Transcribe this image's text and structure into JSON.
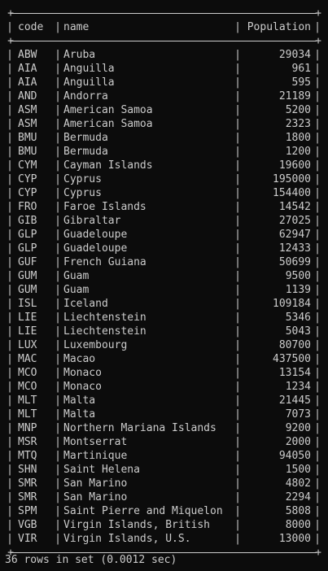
{
  "table": {
    "headers": {
      "code": "code",
      "name": "name",
      "population": "Population"
    },
    "rows": [
      {
        "code": "ABW",
        "name": "Aruba",
        "population": "29034"
      },
      {
        "code": "AIA",
        "name": "Anguilla",
        "population": "961"
      },
      {
        "code": "AIA",
        "name": "Anguilla",
        "population": "595"
      },
      {
        "code": "AND",
        "name": "Andorra",
        "population": "21189"
      },
      {
        "code": "ASM",
        "name": "American Samoa",
        "population": "5200"
      },
      {
        "code": "ASM",
        "name": "American Samoa",
        "population": "2323"
      },
      {
        "code": "BMU",
        "name": "Bermuda",
        "population": "1800"
      },
      {
        "code": "BMU",
        "name": "Bermuda",
        "population": "1200"
      },
      {
        "code": "CYM",
        "name": "Cayman Islands",
        "population": "19600"
      },
      {
        "code": "CYP",
        "name": "Cyprus",
        "population": "195000"
      },
      {
        "code": "CYP",
        "name": "Cyprus",
        "population": "154400"
      },
      {
        "code": "FRO",
        "name": "Faroe Islands",
        "population": "14542"
      },
      {
        "code": "GIB",
        "name": "Gibraltar",
        "population": "27025"
      },
      {
        "code": "GLP",
        "name": "Guadeloupe",
        "population": "62947"
      },
      {
        "code": "GLP",
        "name": "Guadeloupe",
        "population": "12433"
      },
      {
        "code": "GUF",
        "name": "French Guiana",
        "population": "50699"
      },
      {
        "code": "GUM",
        "name": "Guam",
        "population": "9500"
      },
      {
        "code": "GUM",
        "name": "Guam",
        "population": "1139"
      },
      {
        "code": "ISL",
        "name": "Iceland",
        "population": "109184"
      },
      {
        "code": "LIE",
        "name": "Liechtenstein",
        "population": "5346"
      },
      {
        "code": "LIE",
        "name": "Liechtenstein",
        "population": "5043"
      },
      {
        "code": "LUX",
        "name": "Luxembourg",
        "population": "80700"
      },
      {
        "code": "MAC",
        "name": "Macao",
        "population": "437500"
      },
      {
        "code": "MCO",
        "name": "Monaco",
        "population": "13154"
      },
      {
        "code": "MCO",
        "name": "Monaco",
        "population": "1234"
      },
      {
        "code": "MLT",
        "name": "Malta",
        "population": "21445"
      },
      {
        "code": "MLT",
        "name": "Malta",
        "population": "7073"
      },
      {
        "code": "MNP",
        "name": "Northern Mariana Islands",
        "population": "9200"
      },
      {
        "code": "MSR",
        "name": "Montserrat",
        "population": "2000"
      },
      {
        "code": "MTQ",
        "name": "Martinique",
        "population": "94050"
      },
      {
        "code": "SHN",
        "name": "Saint Helena",
        "population": "1500"
      },
      {
        "code": "SMR",
        "name": "San Marino",
        "population": "4802"
      },
      {
        "code": "SMR",
        "name": "San Marino",
        "population": "2294"
      },
      {
        "code": "SPM",
        "name": "Saint Pierre and Miquelon",
        "population": "5808"
      },
      {
        "code": "VGB",
        "name": "Virgin Islands, British",
        "population": "8000"
      },
      {
        "code": "VIR",
        "name": "Virgin Islands, U.S.",
        "population": "13000"
      }
    ]
  },
  "status": "36 rows in set (0.0012 sec)",
  "colors": {
    "background": "#0c0c0c",
    "text": "#cccccc"
  }
}
